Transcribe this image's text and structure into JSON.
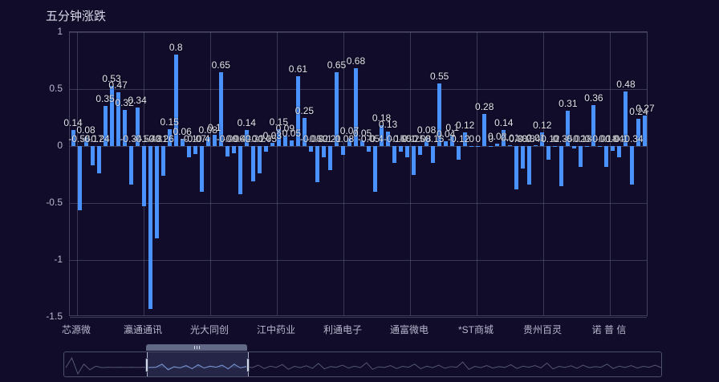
{
  "title": "五分钟涨跌",
  "colors": {
    "background": "#100C2A",
    "bar": "#4992FF",
    "grid": "#6E7086",
    "axis_label": "#B9B8CE",
    "value_label": "#E2E3ED",
    "title_text": "#D7D9E8"
  },
  "chart_data": {
    "type": "bar",
    "title": "五分钟涨跌",
    "xlabel": "",
    "ylabel": "",
    "ylim": [
      -1.5,
      1
    ],
    "yticks": [
      1,
      0.5,
      0,
      -0.5,
      -1,
      -1.5
    ],
    "grid": true,
    "legend_position": "none",
    "xtick_labels": [
      "芯源微",
      "瀛通通讯",
      "光大同创",
      "江中药业",
      "利通电子",
      "通富微电",
      "*ST商城",
      "贵州百灵",
      "诺 普 信"
    ],
    "values": [
      0.14,
      -0.56,
      0.08,
      -0.17,
      -0.24,
      0.35,
      0.53,
      0.47,
      0.32,
      -0.34,
      0.34,
      -0.53,
      -1.43,
      -0.81,
      -0.26,
      0.15,
      0.8,
      0.06,
      -0.1,
      -0.07,
      -0.4,
      0.08,
      0.1,
      0.65,
      -0.09,
      -0.06,
      -0.42,
      0.14,
      -0.31,
      -0.24,
      -0.05,
      0.03,
      0.15,
      0.09,
      0.05,
      0.61,
      0.25,
      -0.05,
      -0.32,
      -0.1,
      -0.21,
      0.65,
      -0.08,
      0.07,
      0.68,
      0.05,
      -0.05,
      -0.4,
      0.18,
      0.13,
      -0.15,
      -0.05,
      -0.1,
      -0.25,
      -0.08,
      0.08,
      -0.15,
      0.55,
      0.04,
      0.1,
      -0.12,
      0.12,
      0,
      0,
      0.28,
      0,
      0.02,
      0.14,
      0.01,
      -0.38,
      -0.2,
      -0.34,
      0.01,
      0.12,
      -0.12,
      0,
      -0.35,
      0.31,
      -0.02,
      -0.18,
      0,
      0.36,
      -0.01,
      -0.18,
      -0.04,
      -0.1,
      0.48,
      -0.34,
      0.24,
      0.27
    ]
  },
  "slider": {
    "grip_icon": "drag-grip",
    "profile": [
      0.62,
      0.15,
      0.92,
      0.45,
      0.72,
      0.55,
      0.62,
      0.6,
      0.61,
      0.6,
      0.61,
      0.6,
      0.61,
      0.6,
      0.61,
      0.6,
      0.45,
      0.72,
      0.58,
      0.63,
      0.52,
      0.67,
      0.48,
      0.64,
      0.55,
      0.6,
      0.5,
      0.68,
      0.45,
      0.63,
      0.57,
      0.62,
      0.5,
      0.66,
      0.55,
      0.61,
      0.47,
      0.7,
      0.56,
      0.62,
      0.53,
      0.65,
      0.42,
      0.68,
      0.57,
      0.6,
      0.5,
      0.64,
      0.55,
      0.62,
      0.38,
      0.7,
      0.58,
      0.61,
      0.52,
      0.66,
      0.56,
      0.6,
      0.45,
      0.67,
      0.55,
      0.62,
      0.5,
      0.65,
      0.57,
      0.6,
      0.35,
      0.7,
      0.56,
      0.62,
      0.52,
      0.64,
      0.57,
      0.61,
      0.48,
      0.66,
      0.55,
      0.6,
      0.52,
      0.63,
      0.4,
      0.68,
      0.56,
      0.61,
      0.53,
      0.65,
      0.5,
      0.62,
      0.57,
      0.6,
      0.45,
      0.66,
      0.55,
      0.61,
      0.52,
      0.64,
      0.56,
      0.6,
      0.5,
      0.62
    ]
  }
}
